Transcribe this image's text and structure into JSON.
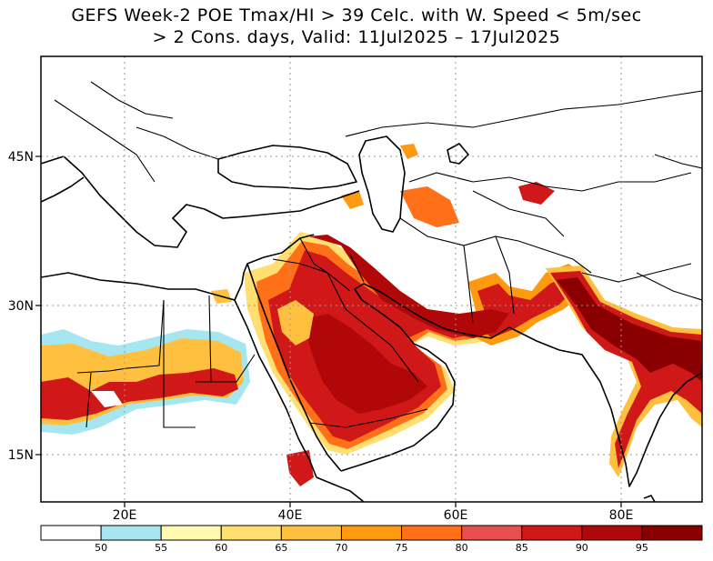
{
  "title": {
    "line1": "GEFS Week-2 POE Tmax/HI > 39 Celc. with W. Speed < 5m/sec",
    "line2": "> 2 Cons. days, Valid: 11Jul2025 – 17Jul2025"
  },
  "axes": {
    "lat_labels": [
      "45N",
      "30N",
      "15N"
    ],
    "lon_labels": [
      "20E",
      "40E",
      "60E",
      "80E"
    ]
  },
  "colorbar": {
    "labels": [
      "50",
      "55",
      "60",
      "65",
      "70",
      "75",
      "80",
      "85",
      "90",
      "95"
    ],
    "colors": [
      "#ffffff",
      "#a6e6f0",
      "#fffab0",
      "#ffdf70",
      "#ffc040",
      "#ff9a10",
      "#ff7018",
      "#e85050",
      "#d01818",
      "#b00808",
      "#8a0000"
    ]
  },
  "colors": {
    "land": "#ffffff",
    "border": "#000000",
    "grid": "#9a9a9a"
  }
}
